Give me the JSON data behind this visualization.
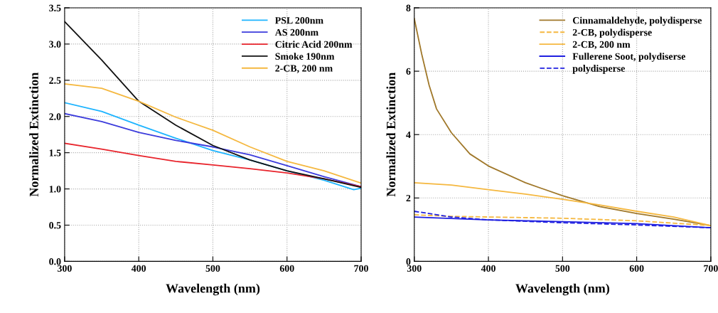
{
  "chart_data": [
    {
      "type": "line",
      "xlabel": "Wavelength (nm)",
      "ylabel": "Normalized Extinction",
      "xlim": [
        300,
        700
      ],
      "ylim": [
        0,
        3.5
      ],
      "xticks": [
        300,
        400,
        500,
        600,
        700
      ],
      "yticks": [
        {
          "value": 0,
          "label": "0.0"
        },
        {
          "value": 0.5,
          "label": "0.5"
        },
        {
          "value": 1,
          "label": "1.0"
        },
        {
          "value": 1.5,
          "label": "1.5"
        },
        {
          "value": 2,
          "label": "2.0"
        },
        {
          "value": 2.5,
          "label": "2.5"
        },
        {
          "value": 3,
          "label": "3.0"
        },
        {
          "value": 3.5,
          "label": "3.5"
        }
      ],
      "grid": true,
      "legend": "top right",
      "line_style": "solid",
      "x": [
        300,
        350,
        400,
        450,
        500,
        550,
        600,
        650,
        700
      ],
      "series": [
        {
          "name": "PSL 200nm",
          "color": "#1eb4ff",
          "x": [
            300,
            350,
            400,
            450,
            500,
            550,
            600,
            650,
            690,
            700
          ],
          "values": [
            2.19,
            2.07,
            1.88,
            1.7,
            1.53,
            1.4,
            1.25,
            1.12,
            0.99,
            1.01
          ]
        },
        {
          "name": "AS 200nm",
          "color": "#3c3cdc",
          "values": [
            2.04,
            1.93,
            1.78,
            1.67,
            1.58,
            1.47,
            1.32,
            1.17,
            1.03
          ]
        },
        {
          "name": "Citric Acid 200nm",
          "color": "#e8242c",
          "values": [
            1.63,
            1.55,
            1.46,
            1.38,
            1.33,
            1.28,
            1.22,
            1.14,
            1.03
          ]
        },
        {
          "name": "Smoke 190nm",
          "color": "#111111",
          "values": [
            3.31,
            2.78,
            2.21,
            1.88,
            1.6,
            1.4,
            1.25,
            1.14,
            1.02
          ]
        },
        {
          "name": "2-CB, 200 nm",
          "color": "#f5b840",
          "values": [
            2.45,
            2.39,
            2.21,
            1.99,
            1.81,
            1.58,
            1.38,
            1.25,
            1.08
          ]
        }
      ]
    },
    {
      "type": "line",
      "xlabel": "Wavelength (nm)",
      "ylabel": "Normalized Extinction",
      "xlim": [
        300,
        700
      ],
      "ylim": [
        0,
        8
      ],
      "xticks": [
        300,
        400,
        500,
        600,
        700
      ],
      "yticks": [
        0,
        2,
        4,
        6,
        8
      ],
      "grid": true,
      "legend": "top right",
      "series": [
        {
          "name": "Cinnamaldehyde, polydisperse",
          "color": "#a0782a",
          "line_style": "solid",
          "x": [
            300,
            310,
            320,
            330,
            350,
            375,
            400,
            450,
            500,
            550,
            600,
            650,
            700
          ],
          "values": [
            7.66,
            6.54,
            5.56,
            4.81,
            4.06,
            3.39,
            3.01,
            2.48,
            2.07,
            1.73,
            1.51,
            1.33,
            1.13
          ]
        },
        {
          "name": "2-CB, polydisperse",
          "color": "#f5b840",
          "line_style": "dashed",
          "x": [
            300,
            350,
            400,
            500,
            600,
            700
          ],
          "values": [
            1.47,
            1.42,
            1.4,
            1.36,
            1.28,
            1.13
          ]
        },
        {
          "name": "2-CB, 200 nm",
          "color": "#f5b840",
          "line_style": "solid",
          "x": [
            300,
            350,
            400,
            450,
            500,
            550,
            600,
            650,
            700
          ],
          "values": [
            2.48,
            2.41,
            2.26,
            2.12,
            1.96,
            1.78,
            1.58,
            1.4,
            1.13
          ]
        },
        {
          "name": "Fullerene Soot, polydiserse",
          "color": "#2020e0",
          "line_style": "solid",
          "x": [
            300,
            400,
            500,
            600,
            700
          ],
          "values": [
            1.4,
            1.31,
            1.25,
            1.19,
            1.06
          ]
        },
        {
          "name": "polydisperse",
          "color": "#2020e0",
          "line_style": "dashed",
          "x": [
            300,
            350,
            400,
            500,
            600,
            700
          ],
          "values": [
            1.58,
            1.4,
            1.31,
            1.22,
            1.15,
            1.06
          ]
        }
      ]
    }
  ]
}
